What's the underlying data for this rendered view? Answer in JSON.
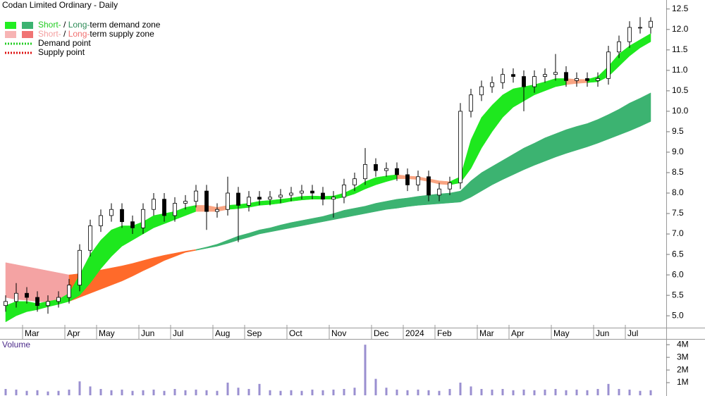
{
  "chart_data": {
    "type": "candlestick",
    "title": "Codan Limited Ordinary - Daily",
    "categories": [
      null,
      null,
      "Mar",
      null,
      null,
      null,
      "Apr",
      null,
      null,
      "May",
      null,
      null,
      null,
      "Jun",
      null,
      null,
      "Jul",
      null,
      null,
      null,
      "Aug",
      null,
      null,
      "Sep",
      null,
      null,
      null,
      "Oct",
      null,
      null,
      null,
      "Nov",
      null,
      null,
      null,
      "Dec",
      null,
      null,
      "2024",
      null,
      null,
      "Feb",
      null,
      null,
      null,
      "Mar",
      null,
      null,
      "Apr",
      null,
      null,
      null,
      "May",
      null,
      null,
      null,
      "Jun",
      null,
      null,
      "Jul",
      null,
      null
    ],
    "open": [
      5.25,
      5.35,
      5.55,
      5.45,
      5.25,
      5.35,
      5.45,
      5.75,
      6.6,
      7.2,
      7.45,
      7.6,
      7.3,
      7.15,
      7.6,
      7.85,
      7.45,
      7.75,
      7.8,
      8.05,
      7.55,
      7.6,
      8.0,
      7.7,
      7.9,
      7.85,
      7.9,
      7.95,
      8.0,
      8.05,
      8.0,
      7.85,
      7.9,
      8.2,
      8.35,
      8.7,
      8.55,
      8.6,
      8.45,
      8.2,
      8.4,
      7.95,
      8.1,
      8.25,
      10.0,
      10.4,
      10.6,
      10.7,
      10.9,
      10.85,
      10.6,
      10.85,
      10.9,
      10.95,
      10.75,
      10.8,
      10.75,
      10.8,
      11.45,
      11.7,
      12.05,
      12.05
    ],
    "high": [
      5.5,
      5.8,
      5.7,
      5.6,
      5.5,
      5.6,
      5.9,
      6.75,
      7.35,
      7.6,
      7.75,
      7.75,
      7.45,
      7.75,
      8.0,
      8.0,
      7.9,
      7.95,
      8.2,
      8.2,
      7.75,
      8.4,
      8.15,
      8.05,
      8.05,
      8.05,
      8.1,
      8.15,
      8.2,
      8.2,
      8.15,
      8.05,
      8.35,
      8.5,
      9.1,
      8.85,
      8.75,
      8.75,
      8.6,
      8.55,
      8.55,
      8.25,
      8.4,
      10.2,
      10.55,
      10.75,
      10.85,
      11.05,
      11.05,
      11.0,
      11.0,
      11.05,
      11.4,
      11.1,
      10.95,
      10.95,
      10.95,
      11.6,
      11.85,
      12.2,
      12.3,
      12.3
    ],
    "low": [
      5.1,
      5.2,
      5.3,
      5.1,
      5.05,
      5.2,
      5.3,
      5.6,
      6.45,
      7.05,
      7.3,
      7.15,
      7.0,
      7.0,
      7.45,
      7.3,
      7.3,
      7.6,
      7.65,
      7.1,
      7.4,
      7.45,
      6.8,
      7.55,
      7.7,
      7.7,
      7.75,
      7.8,
      7.85,
      7.85,
      7.7,
      7.4,
      7.75,
      8.05,
      8.2,
      8.4,
      8.4,
      8.3,
      8.05,
      8.05,
      7.8,
      7.8,
      7.95,
      8.1,
      9.85,
      10.25,
      10.45,
      10.55,
      10.7,
      10.0,
      10.45,
      10.7,
      10.75,
      10.6,
      10.6,
      10.6,
      10.6,
      10.65,
      11.3,
      11.55,
      11.9,
      11.9
    ],
    "close": [
      5.35,
      5.55,
      5.45,
      5.25,
      5.35,
      5.45,
      5.75,
      6.6,
      7.2,
      7.45,
      7.6,
      7.3,
      7.15,
      7.6,
      7.85,
      7.45,
      7.75,
      7.8,
      8.05,
      7.55,
      7.6,
      8.0,
      7.7,
      7.9,
      7.85,
      7.9,
      7.95,
      8.0,
      8.05,
      8.0,
      7.85,
      7.9,
      8.2,
      8.35,
      8.7,
      8.55,
      8.6,
      8.45,
      8.2,
      8.4,
      7.95,
      8.1,
      8.25,
      10.0,
      10.4,
      10.6,
      10.7,
      10.9,
      10.85,
      10.6,
      10.85,
      10.9,
      10.95,
      10.75,
      10.8,
      10.75,
      10.8,
      11.45,
      11.7,
      12.05,
      12.05,
      12.2
    ],
    "ylim": [
      4.71,
      12.72
    ],
    "yticks": [
      {
        "value": 5,
        "label": "5.0"
      },
      5.5,
      {
        "value": 6,
        "label": "6.0"
      },
      6.5,
      {
        "value": 7,
        "label": "7.0"
      },
      7.5,
      {
        "value": 8,
        "label": "8.0"
      },
      8.5,
      {
        "value": 9,
        "label": "9.0"
      },
      9.5,
      {
        "value": 10,
        "label": "10.0"
      },
      10.5,
      {
        "value": 11,
        "label": "11.0"
      },
      11.5,
      {
        "value": 12,
        "label": "12.0"
      },
      12.5
    ],
    "zones": [
      {
        "color": "#f4a3a3",
        "upper": [
          6.3,
          6.25,
          6.2,
          6.15,
          6.1,
          6.05,
          6.0,
          null,
          null,
          null,
          null,
          null,
          null,
          null,
          null,
          null,
          null,
          null,
          null,
          null,
          null,
          null,
          null,
          null,
          null,
          null,
          null,
          null,
          null,
          null,
          null,
          null,
          null,
          null,
          null,
          null,
          null,
          null,
          null,
          null,
          null,
          null,
          null,
          null,
          null,
          null,
          null,
          null,
          null,
          null,
          null,
          null,
          null,
          null,
          null,
          null,
          null,
          null,
          null,
          null,
          null,
          null
        ],
        "lower": [
          5.45,
          5.4,
          5.38,
          5.35,
          5.33,
          5.32,
          5.35,
          null,
          null,
          null,
          null,
          null,
          null,
          null,
          null,
          null,
          null,
          null,
          null,
          null,
          null,
          null,
          null,
          null,
          null,
          null,
          null,
          null,
          null,
          null,
          null,
          null,
          null,
          null,
          null,
          null,
          null,
          null,
          null,
          null,
          null,
          null,
          null,
          null,
          null,
          null,
          null,
          null,
          null,
          null,
          null,
          null,
          null,
          null,
          null,
          null,
          null,
          null,
          null,
          null,
          null,
          null
        ]
      },
      {
        "color": "#ff6a2a",
        "upper": [
          null,
          null,
          null,
          null,
          null,
          null,
          6.0,
          6.03,
          6.07,
          6.12,
          6.17,
          6.22,
          6.28,
          6.35,
          6.42,
          6.48,
          6.53,
          6.58,
          6.62,
          null,
          null,
          null,
          null,
          null,
          null,
          null,
          null,
          null,
          null,
          null,
          null,
          null,
          null,
          null,
          null,
          null,
          null,
          null,
          null,
          null,
          null,
          null,
          null,
          null,
          null,
          null,
          null,
          null,
          null,
          null,
          null,
          null,
          null,
          null,
          null,
          null,
          null,
          null,
          null,
          null,
          null,
          null
        ],
        "lower": [
          null,
          null,
          null,
          null,
          null,
          null,
          5.35,
          5.45,
          5.55,
          5.65,
          5.75,
          5.85,
          5.97,
          6.1,
          6.22,
          6.35,
          6.45,
          6.55,
          6.6,
          null,
          null,
          null,
          null,
          null,
          null,
          null,
          null,
          null,
          null,
          null,
          null,
          null,
          null,
          null,
          null,
          null,
          null,
          null,
          null,
          null,
          null,
          null,
          null,
          null,
          null,
          null,
          null,
          null,
          null,
          null,
          null,
          null,
          null,
          null,
          null,
          null,
          null,
          null,
          null,
          null,
          null,
          null
        ]
      },
      {
        "color": "#3cb371",
        "upper": [
          null,
          null,
          null,
          null,
          null,
          null,
          null,
          null,
          null,
          null,
          null,
          null,
          null,
          null,
          null,
          null,
          null,
          null,
          6.62,
          6.68,
          6.75,
          6.85,
          6.95,
          7.02,
          7.1,
          7.15,
          7.22,
          7.28,
          7.33,
          7.38,
          7.43,
          7.5,
          7.58,
          7.63,
          7.68,
          7.75,
          7.8,
          7.85,
          7.88,
          7.92,
          7.95,
          7.98,
          8.0,
          8.05,
          8.3,
          8.5,
          8.65,
          8.8,
          8.95,
          9.1,
          9.22,
          9.35,
          9.45,
          9.55,
          9.63,
          9.7,
          9.8,
          9.92,
          10.05,
          10.2,
          10.32,
          10.45
        ],
        "lower": [
          null,
          null,
          null,
          null,
          null,
          null,
          null,
          null,
          null,
          null,
          null,
          null,
          null,
          null,
          null,
          null,
          null,
          null,
          6.6,
          6.65,
          6.7,
          6.77,
          6.85,
          6.92,
          7.0,
          7.05,
          7.1,
          7.15,
          7.2,
          7.25,
          7.3,
          7.35,
          7.4,
          7.45,
          7.5,
          7.55,
          7.6,
          7.63,
          7.67,
          7.7,
          7.72,
          7.74,
          7.76,
          7.78,
          7.9,
          8.05,
          8.2,
          8.33,
          8.45,
          8.57,
          8.68,
          8.78,
          8.88,
          8.97,
          9.05,
          9.13,
          9.22,
          9.32,
          9.42,
          9.52,
          9.63,
          9.75
        ]
      },
      {
        "color": "#1ee81e",
        "upper": [
          5.25,
          5.35,
          5.35,
          5.3,
          5.35,
          5.4,
          5.55,
          6.0,
          6.5,
          6.85,
          7.1,
          7.2,
          7.2,
          7.3,
          7.45,
          7.5,
          7.55,
          7.65,
          7.7,
          null,
          null,
          7.7,
          7.72,
          7.75,
          7.8,
          7.82,
          7.85,
          7.88,
          7.92,
          7.93,
          7.92,
          7.93,
          8.0,
          8.12,
          8.28,
          8.38,
          8.42,
          8.45,
          null,
          null,
          null,
          null,
          8.28,
          8.4,
          9.3,
          9.85,
          10.15,
          10.4,
          10.55,
          10.6,
          10.65,
          10.72,
          10.8,
          10.8,
          null,
          10.78,
          10.85,
          11.1,
          11.4,
          11.6,
          11.75,
          11.9
        ],
        "lower": [
          4.85,
          5.0,
          5.1,
          5.15,
          5.22,
          5.28,
          5.35,
          5.5,
          5.8,
          6.15,
          6.45,
          6.7,
          6.85,
          7.0,
          7.15,
          7.25,
          7.35,
          7.45,
          7.55,
          null,
          null,
          7.6,
          7.62,
          7.65,
          7.7,
          7.72,
          7.75,
          7.8,
          7.83,
          7.85,
          7.85,
          7.85,
          7.9,
          7.98,
          8.1,
          8.2,
          8.28,
          8.35,
          null,
          null,
          null,
          null,
          8.2,
          8.25,
          8.6,
          9.1,
          9.5,
          9.85,
          10.1,
          10.25,
          10.4,
          10.5,
          10.6,
          10.65,
          null,
          10.7,
          10.72,
          10.85,
          11.1,
          11.35,
          11.55,
          11.7
        ]
      },
      {
        "color": "#f9a482",
        "upper": [
          null,
          null,
          null,
          null,
          null,
          null,
          null,
          null,
          null,
          null,
          null,
          null,
          null,
          null,
          null,
          null,
          null,
          null,
          7.7,
          7.7,
          7.65,
          7.7,
          null,
          null,
          null,
          null,
          null,
          null,
          null,
          null,
          null,
          null,
          null,
          null,
          null,
          null,
          null,
          8.45,
          8.42,
          8.4,
          8.35,
          8.3,
          8.28,
          null,
          null,
          null,
          null,
          null,
          null,
          null,
          null,
          null,
          null,
          10.8,
          10.78,
          10.78,
          null,
          null,
          null,
          null,
          null,
          null
        ],
        "lower": [
          null,
          null,
          null,
          null,
          null,
          null,
          null,
          null,
          null,
          null,
          null,
          null,
          null,
          null,
          null,
          null,
          null,
          null,
          7.55,
          7.55,
          7.55,
          7.6,
          null,
          null,
          null,
          null,
          null,
          null,
          null,
          null,
          null,
          null,
          null,
          null,
          null,
          null,
          null,
          8.35,
          8.35,
          8.33,
          8.28,
          8.22,
          8.2,
          null,
          null,
          null,
          null,
          null,
          null,
          null,
          null,
          null,
          null,
          10.65,
          10.68,
          10.7,
          null,
          null,
          null,
          null,
          null,
          null
        ]
      }
    ],
    "legend": [
      {
        "swatches": [
          "#22ee22",
          "#3cb371"
        ],
        "parts": [
          {
            "text": "Short-",
            "color": "#22cc22"
          },
          {
            "text": " / "
          },
          {
            "text": "Long-",
            "color": "#2e8b57"
          },
          {
            "text": "term demand zone"
          }
        ]
      },
      {
        "swatches": [
          "#f7b4b4",
          "#f07474"
        ],
        "parts": [
          {
            "text": "Short-",
            "color": "#f4a0a0"
          },
          {
            "text": " / "
          },
          {
            "text": "Long-",
            "color": "#f07070"
          },
          {
            "text": "term supply zone"
          }
        ]
      },
      {
        "line_color": "#22cc22",
        "text": "Demand point"
      },
      {
        "line_color": "#dd1111",
        "text": "Supply point"
      }
    ],
    "volume": {
      "title": "Volume",
      "color": "#9a8fd0",
      "values": [
        500000,
        450000,
        350000,
        400000,
        300000,
        350000,
        450000,
        1100000,
        700000,
        500000,
        400000,
        450000,
        350000,
        400000,
        450000,
        350000,
        500000,
        400000,
        450000,
        400000,
        350000,
        1000000,
        600000,
        500000,
        900000,
        400000,
        350000,
        400000,
        350000,
        450000,
        400000,
        450000,
        500000,
        600000,
        4000000,
        1300000,
        600000,
        450000,
        400000,
        450000,
        400000,
        350000,
        500000,
        1000000,
        700000,
        500000,
        450000,
        500000,
        400000,
        450000,
        400000,
        450000,
        500000,
        400000,
        450000,
        400000,
        500000,
        900000,
        500000,
        450000,
        350000,
        400000
      ],
      "ylim": [
        0,
        4400000
      ],
      "yticks": [
        {
          "value": 1000000,
          "label": "1M"
        },
        {
          "value": 2000000,
          "label": "2M"
        },
        {
          "value": 3000000,
          "label": "3M"
        },
        {
          "value": 4000000,
          "label": "4M"
        }
      ]
    }
  }
}
